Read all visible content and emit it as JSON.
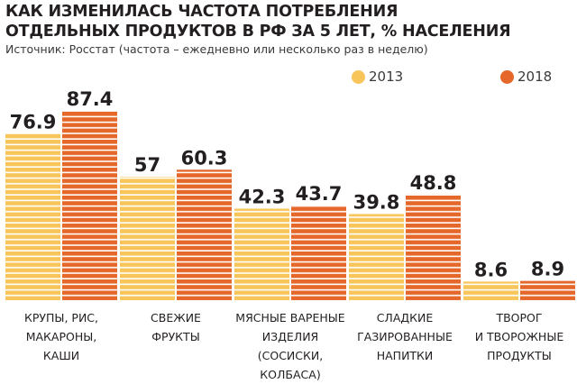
{
  "header": {
    "title_line1": "КАК ИЗМЕНИЛАСЬ ЧАСТОТА ПОТРЕБЛЕНИЯ",
    "title_line2": "ОТДЕЛЬНЫХ ПРОДУКТОВ В РФ ЗА 5 ЛЕТ, % НАСЕЛЕНИЯ",
    "source": "Источник: Росстат (частота – ежедневно или несколько раз в неделю)"
  },
  "colors": {
    "s2013": "#f7c55a",
    "s2018": "#e5672a",
    "stripe": "#ffffff",
    "text": "#231f20"
  },
  "chart_data": {
    "type": "bar",
    "title": "КАК ИЗМЕНИЛАСЬ ЧАСТОТА ПОТРЕБЛЕНИЯ ОТДЕЛЬНЫХ ПРОДУКТОВ В РФ ЗА 5 ЛЕТ, % НАСЕЛЕНИЯ",
    "subtitle": "Источник: Росстат (частота – ежедневно или несколько раз в неделю)",
    "categories": [
      "КРУПЫ, РИС,\nМАКАРОНЫ,\nКАШИ",
      "СВЕЖИЕ\nФРУКТЫ",
      "МЯСНЫЕ ВАРЕНЫЕ\nИЗДЕЛИЯ (СОСИСКИ,\nКОЛБАСА)",
      "СЛАДКИЕ\nГАЗИРОВАННЫЕ\nНАПИТКИ",
      "ТВОРОГ\nИ ТВОРОЖНЫЕ\nПРОДУКТЫ"
    ],
    "series": [
      {
        "name": "2013",
        "values": [
          76.9,
          57,
          42.3,
          39.8,
          8.6
        ],
        "labels": [
          "76.9",
          "57",
          "42.3",
          "39.8",
          "8.6"
        ]
      },
      {
        "name": "2018",
        "values": [
          87.4,
          60.3,
          43.7,
          48.8,
          8.9
        ],
        "labels": [
          "87.4",
          "60.3",
          "43.7",
          "48.8",
          "8.9"
        ]
      }
    ],
    "legend_position": "top-right",
    "grid": false
  }
}
